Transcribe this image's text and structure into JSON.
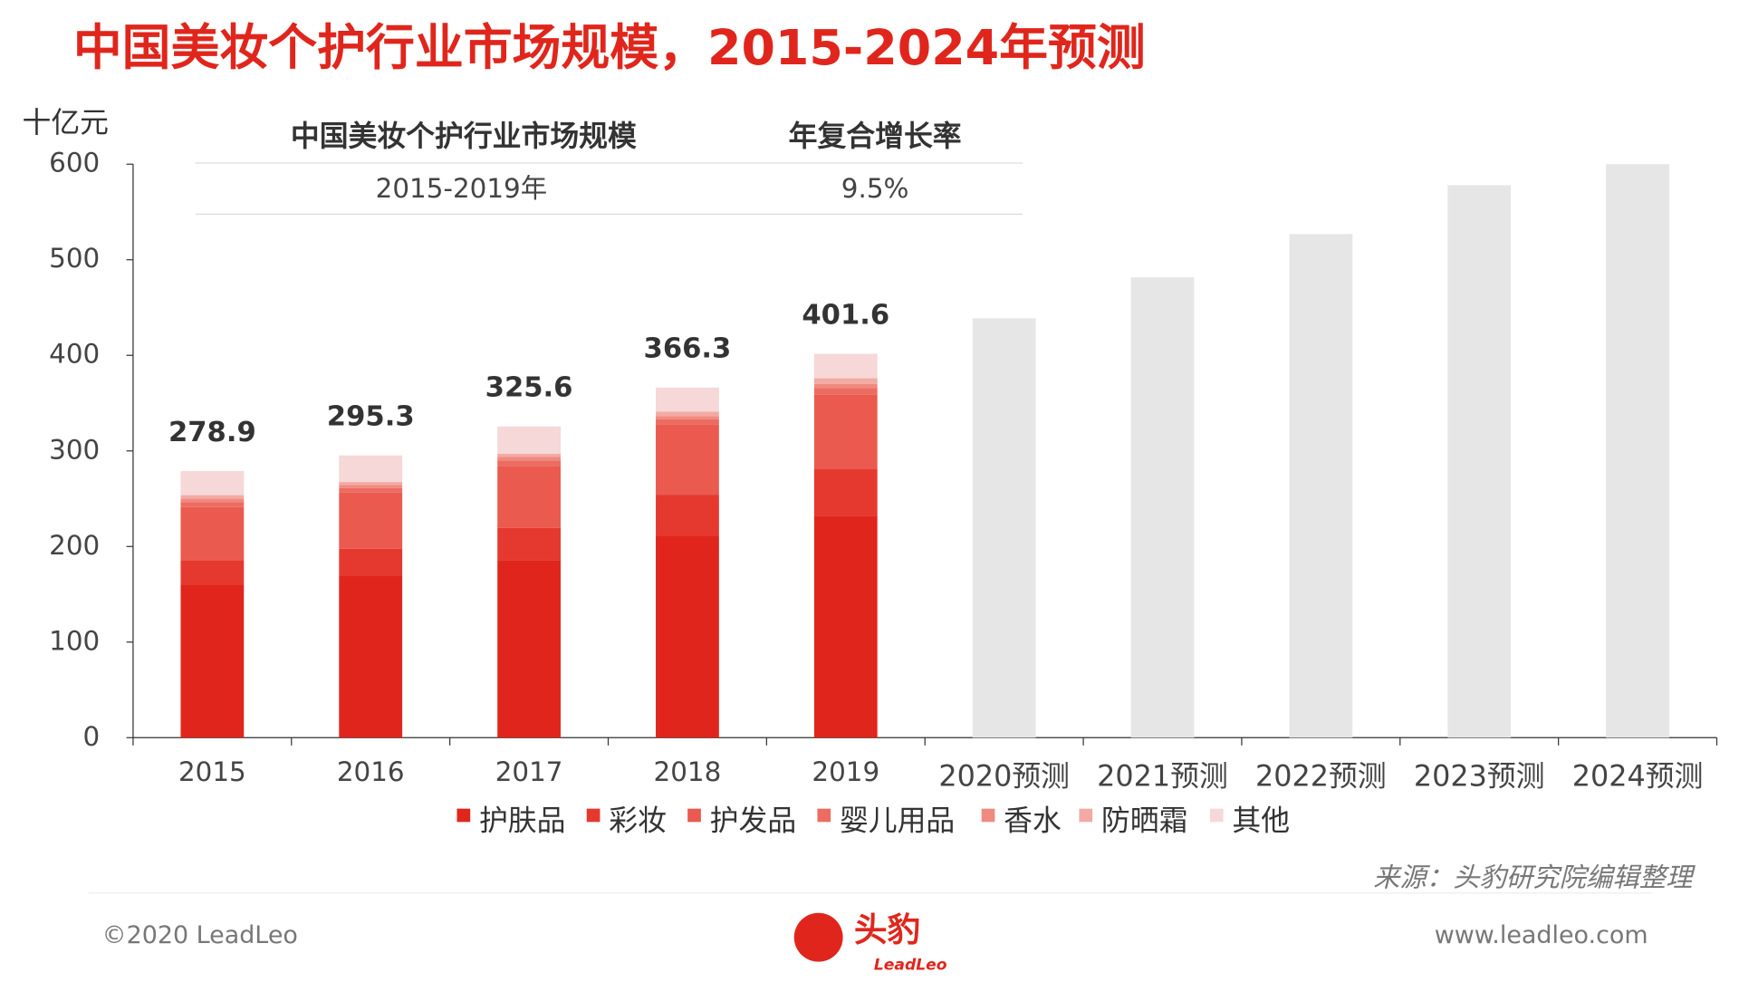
{
  "title": "中国美妆个护行业市场规模，2015-2024年预测",
  "chart_data": {
    "type": "stacked_bar",
    "y_unit": "十亿元",
    "categories": [
      "2015",
      "2016",
      "2017",
      "2018",
      "2019",
      "2020预测",
      "2021预测",
      "2022预测",
      "2023预测",
      "2024预测"
    ],
    "series": [
      {
        "name": "护肤品",
        "color": "#e0261c",
        "values": [
          160,
          169.5,
          185.7,
          211.2,
          232.1,
          null,
          null,
          null,
          null,
          null
        ]
      },
      {
        "name": "彩妆",
        "color": "#e5392f",
        "values": [
          25.7,
          28,
          33.6,
          43,
          48.7,
          null,
          null,
          null,
          null,
          null
        ]
      },
      {
        "name": "护发品",
        "color": "#ea5a4f",
        "values": [
          55.5,
          59,
          65,
          73.1,
          77.8,
          null,
          null,
          null,
          null,
          null
        ]
      },
      {
        "name": "婴儿用品",
        "color": "#ec6c62",
        "values": [
          5,
          4.5,
          5.8,
          5.7,
          7,
          null,
          null,
          null,
          null,
          null
        ]
      },
      {
        "name": "香水",
        "color": "#ef8a80",
        "values": [
          4,
          3.5,
          3.5,
          3.5,
          4.6,
          null,
          null,
          null,
          null,
          null
        ]
      },
      {
        "name": "防晒霜",
        "color": "#f3aaa4",
        "values": [
          3.5,
          3,
          3.4,
          4.5,
          5.8,
          null,
          null,
          null,
          null,
          null
        ]
      },
      {
        "name": "其他",
        "color": "#f5d8d7",
        "values": [
          25.2,
          27.8,
          28.6,
          25.3,
          25.6,
          null,
          null,
          null,
          null,
          null
        ]
      }
    ],
    "forecast": {
      "color": "#e6e6e6",
      "values": [
        null,
        null,
        null,
        null,
        null,
        438.7,
        481.6,
        526.9,
        578,
        600
      ]
    },
    "totals": [
      278.9,
      295.3,
      325.6,
      366.3,
      401.6,
      null,
      null,
      null,
      null,
      null
    ],
    "ylim": [
      0,
      600
    ],
    "yticks": [
      0,
      100,
      200,
      300,
      400,
      500,
      600
    ]
  },
  "table": {
    "header": [
      "中国美妆个护行业市场规模",
      "年复合增长率"
    ],
    "row": [
      "2015-2019年",
      "9.5%"
    ]
  },
  "source": "来源：头豹研究院编辑整理",
  "footer": {
    "copyright": "©2020 LeadLeo",
    "logo": "头豹",
    "logo_sub": "LeadLeo",
    "url": "www.leadleo.com"
  }
}
